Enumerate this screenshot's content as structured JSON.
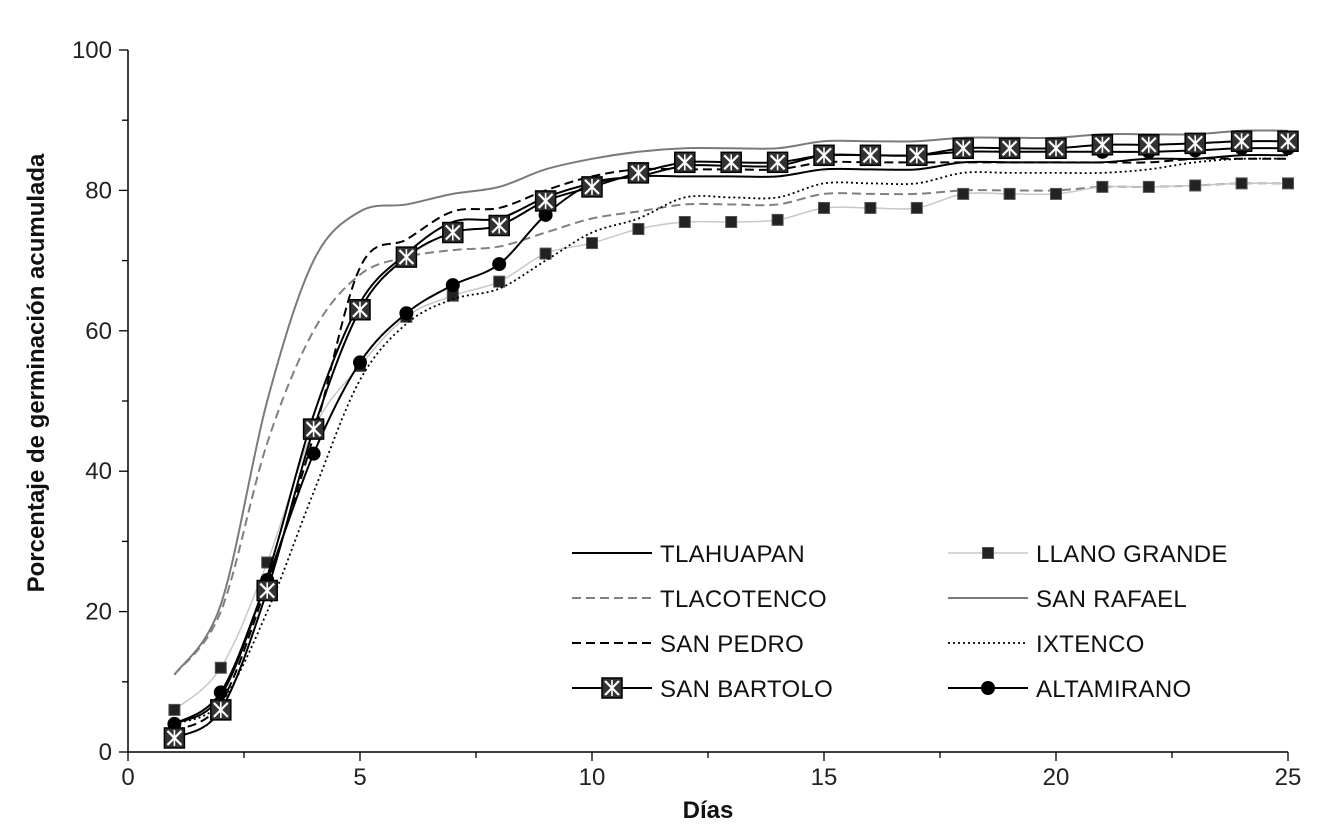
{
  "chart_data": {
    "type": "line",
    "title": "",
    "xlabel": "Días",
    "ylabel": "Porcentaje de germinación acumulada",
    "xlim": [
      0,
      25
    ],
    "ylim": [
      0,
      100
    ],
    "xticks": [
      0,
      5,
      10,
      15,
      20,
      25
    ],
    "yticks": [
      0,
      20,
      40,
      60,
      80,
      100
    ],
    "grid": false,
    "legend_position": "bottom-right",
    "x": [
      1,
      2,
      3,
      4,
      5,
      6,
      7,
      8,
      9,
      10,
      11,
      12,
      13,
      14,
      15,
      16,
      17,
      18,
      19,
      20,
      21,
      22,
      23,
      24,
      25
    ],
    "series": [
      {
        "name": "TLAHUAPAN",
        "style": "solid",
        "color": "#000000",
        "width": 2,
        "marker": "none",
        "values": [
          4,
          8,
          25,
          48,
          64,
          71,
          75.5,
          76,
          79,
          81,
          82,
          82,
          82,
          82,
          83,
          83,
          83,
          84,
          84,
          84,
          84,
          84.5,
          84.5,
          85,
          85
        ]
      },
      {
        "name": "LLANO GRANDE",
        "style": "solid",
        "color": "#c8c8c8",
        "width": 1.5,
        "marker": "square",
        "values": [
          6,
          12,
          27,
          46,
          55,
          62,
          65,
          67,
          71,
          72.5,
          74.5,
          75.5,
          75.5,
          75.8,
          77.5,
          77.5,
          77.5,
          79.5,
          79.5,
          79.5,
          80.5,
          80.5,
          80.7,
          81,
          81
        ]
      },
      {
        "name": "TLACOTENCO",
        "style": "dashed",
        "color": "#808080",
        "width": 2,
        "marker": "none",
        "values": [
          11,
          20,
          44,
          60,
          68,
          70.5,
          71.5,
          72,
          74,
          76,
          77,
          78,
          78,
          78,
          79.5,
          79.5,
          79.5,
          80,
          80,
          80,
          80.5,
          80.5,
          80.7,
          81,
          81
        ]
      },
      {
        "name": "SAN RAFAEL",
        "style": "solid",
        "color": "#7a7a7a",
        "width": 2,
        "marker": "none",
        "values": [
          11,
          21,
          50,
          70,
          77,
          78,
          79.5,
          80.5,
          83,
          84.5,
          85.5,
          86,
          86,
          86,
          87,
          87,
          87,
          87.5,
          87.5,
          87.5,
          88,
          88,
          88,
          88.5,
          88.5
        ]
      },
      {
        "name": "SAN PEDRO",
        "style": "dashed",
        "color": "#000000",
        "width": 2,
        "marker": "none",
        "values": [
          3,
          7,
          24,
          45,
          69,
          73,
          77,
          77.5,
          80,
          82,
          83,
          83,
          83,
          83,
          84,
          84,
          84,
          84,
          84,
          84,
          84,
          84,
          84.5,
          84.5,
          84.5
        ]
      },
      {
        "name": "IXTENCO",
        "style": "dotted",
        "color": "#000000",
        "width": 1.8,
        "marker": "none",
        "values": [
          4,
          7,
          20,
          37,
          53,
          61,
          64.5,
          66,
          70,
          74,
          76,
          79,
          79,
          79,
          81,
          81,
          81,
          82.5,
          82.5,
          82.5,
          82.5,
          83,
          84,
          84.5,
          84.5
        ]
      },
      {
        "name": "SAN BARTOLO",
        "style": "solid",
        "color": "#000000",
        "width": 2,
        "marker": "xsquare",
        "values": [
          2,
          6,
          23,
          46,
          63,
          70.5,
          74,
          75,
          78.5,
          80.5,
          82.5,
          84,
          84,
          84,
          85,
          85,
          85,
          86,
          86,
          86,
          86.5,
          86.5,
          86.7,
          87,
          87
        ]
      },
      {
        "name": "ALTAMIRANO",
        "style": "solid",
        "color": "#000000",
        "width": 2,
        "marker": "circle",
        "values": [
          4,
          8.5,
          24.5,
          42.5,
          55.5,
          62.5,
          66.5,
          69.5,
          76.5,
          81,
          82,
          83.5,
          83.5,
          83.5,
          85,
          85,
          85,
          85.5,
          85.5,
          85.5,
          85.5,
          85.5,
          85.7,
          86,
          86
        ]
      }
    ]
  }
}
